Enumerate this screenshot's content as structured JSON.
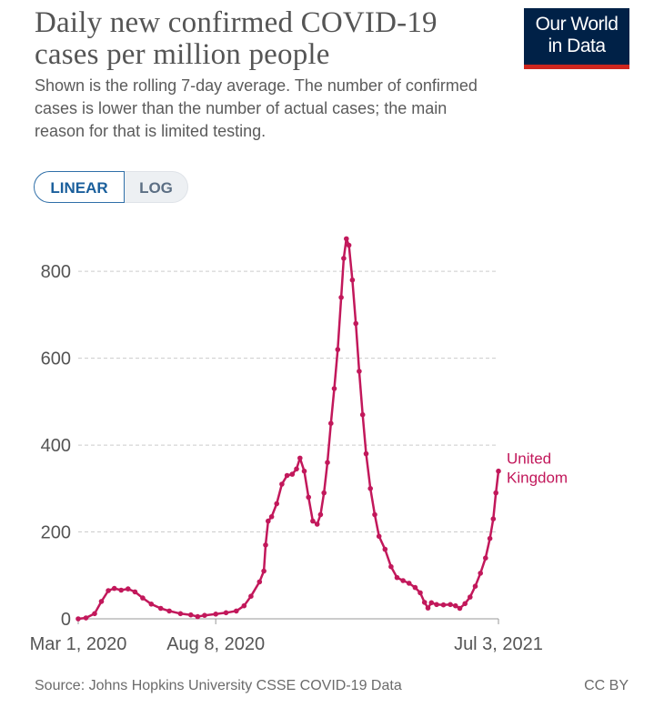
{
  "header": {
    "title": "Daily new confirmed COVID-19 cases per million people",
    "subtitle": "Shown is the rolling 7-day average. The number of confirmed cases is lower than the number of actual cases; the main reason for that is limited testing.",
    "logo_line1": "Our World",
    "logo_line2": "in Data"
  },
  "toggle": {
    "linear_label": "LINEAR",
    "log_label": "LOG",
    "selected": "LINEAR"
  },
  "footer": {
    "source": "Source: Johns Hopkins University CSSE COVID-19 Data",
    "license": "CC BY"
  },
  "colors": {
    "series": "#c2185b",
    "grid": "#cccccc",
    "text": "#555555",
    "logo_bg": "#002147",
    "logo_accent": "#ce261e"
  },
  "chart_data": {
    "type": "line",
    "title": "Daily new confirmed COVID-19 cases per million people",
    "ylim": [
      0,
      880
    ],
    "yticks": [
      0,
      200,
      400,
      600,
      800
    ],
    "ytick_labels": [
      "0",
      "200",
      "400",
      "600",
      "800"
    ],
    "x_start": "2020-03-01",
    "x_end": "2021-07-03",
    "xtick_labels": [
      {
        "date": "2020-03-01",
        "label": "Mar 1, 2020"
      },
      {
        "date": "2020-08-08",
        "label": "Aug 8, 2020"
      },
      {
        "date": "2021-07-03",
        "label": "Jul 3, 2021"
      }
    ],
    "grid": "horizontal dashed",
    "series": [
      {
        "name": "United Kingdom",
        "label_text": [
          "United",
          "Kingdom"
        ],
        "points": [
          {
            "x": "2020-03-01",
            "y": 0
          },
          {
            "x": "2020-03-10",
            "y": 2
          },
          {
            "x": "2020-03-20",
            "y": 12
          },
          {
            "x": "2020-03-28",
            "y": 40
          },
          {
            "x": "2020-04-05",
            "y": 65
          },
          {
            "x": "2020-04-12",
            "y": 70
          },
          {
            "x": "2020-04-20",
            "y": 66
          },
          {
            "x": "2020-04-28",
            "y": 69
          },
          {
            "x": "2020-05-06",
            "y": 62
          },
          {
            "x": "2020-05-15",
            "y": 48
          },
          {
            "x": "2020-05-25",
            "y": 34
          },
          {
            "x": "2020-06-05",
            "y": 24
          },
          {
            "x": "2020-06-15",
            "y": 18
          },
          {
            "x": "2020-06-28",
            "y": 12
          },
          {
            "x": "2020-07-10",
            "y": 9
          },
          {
            "x": "2020-07-18",
            "y": 5
          },
          {
            "x": "2020-07-26",
            "y": 8
          },
          {
            "x": "2020-08-08",
            "y": 11
          },
          {
            "x": "2020-08-20",
            "y": 14
          },
          {
            "x": "2020-09-01",
            "y": 18
          },
          {
            "x": "2020-09-10",
            "y": 30
          },
          {
            "x": "2020-09-18",
            "y": 52
          },
          {
            "x": "2020-09-28",
            "y": 85
          },
          {
            "x": "2020-10-03",
            "y": 110
          },
          {
            "x": "2020-10-05",
            "y": 170
          },
          {
            "x": "2020-10-08",
            "y": 225
          },
          {
            "x": "2020-10-12",
            "y": 235
          },
          {
            "x": "2020-10-18",
            "y": 265
          },
          {
            "x": "2020-10-24",
            "y": 310
          },
          {
            "x": "2020-10-30",
            "y": 330
          },
          {
            "x": "2020-11-05",
            "y": 333
          },
          {
            "x": "2020-11-10",
            "y": 345
          },
          {
            "x": "2020-11-14",
            "y": 370
          },
          {
            "x": "2020-11-19",
            "y": 340
          },
          {
            "x": "2020-11-24",
            "y": 280
          },
          {
            "x": "2020-11-29",
            "y": 225
          },
          {
            "x": "2020-12-04",
            "y": 218
          },
          {
            "x": "2020-12-08",
            "y": 240
          },
          {
            "x": "2020-12-12",
            "y": 290
          },
          {
            "x": "2020-12-16",
            "y": 360
          },
          {
            "x": "2020-12-20",
            "y": 450
          },
          {
            "x": "2020-12-24",
            "y": 530
          },
          {
            "x": "2020-12-28",
            "y": 620
          },
          {
            "x": "2021-01-01",
            "y": 740
          },
          {
            "x": "2021-01-04",
            "y": 830
          },
          {
            "x": "2021-01-07",
            "y": 875
          },
          {
            "x": "2021-01-10",
            "y": 860
          },
          {
            "x": "2021-01-14",
            "y": 780
          },
          {
            "x": "2021-01-18",
            "y": 680
          },
          {
            "x": "2021-01-22",
            "y": 570
          },
          {
            "x": "2021-01-26",
            "y": 470
          },
          {
            "x": "2021-01-30",
            "y": 380
          },
          {
            "x": "2021-02-04",
            "y": 300
          },
          {
            "x": "2021-02-09",
            "y": 240
          },
          {
            "x": "2021-02-14",
            "y": 190
          },
          {
            "x": "2021-02-21",
            "y": 160
          },
          {
            "x": "2021-02-28",
            "y": 120
          },
          {
            "x": "2021-03-07",
            "y": 95
          },
          {
            "x": "2021-03-14",
            "y": 88
          },
          {
            "x": "2021-03-21",
            "y": 82
          },
          {
            "x": "2021-03-28",
            "y": 72
          },
          {
            "x": "2021-04-03",
            "y": 60
          },
          {
            "x": "2021-04-08",
            "y": 38
          },
          {
            "x": "2021-04-12",
            "y": 25
          },
          {
            "x": "2021-04-16",
            "y": 37
          },
          {
            "x": "2021-04-22",
            "y": 33
          },
          {
            "x": "2021-04-30",
            "y": 32
          },
          {
            "x": "2021-05-08",
            "y": 33
          },
          {
            "x": "2021-05-14",
            "y": 30
          },
          {
            "x": "2021-05-19",
            "y": 24
          },
          {
            "x": "2021-05-25",
            "y": 35
          },
          {
            "x": "2021-05-31",
            "y": 50
          },
          {
            "x": "2021-06-06",
            "y": 75
          },
          {
            "x": "2021-06-12",
            "y": 105
          },
          {
            "x": "2021-06-18",
            "y": 140
          },
          {
            "x": "2021-06-23",
            "y": 185
          },
          {
            "x": "2021-06-27",
            "y": 230
          },
          {
            "x": "2021-06-30",
            "y": 290
          },
          {
            "x": "2021-07-03",
            "y": 340
          }
        ]
      }
    ]
  }
}
